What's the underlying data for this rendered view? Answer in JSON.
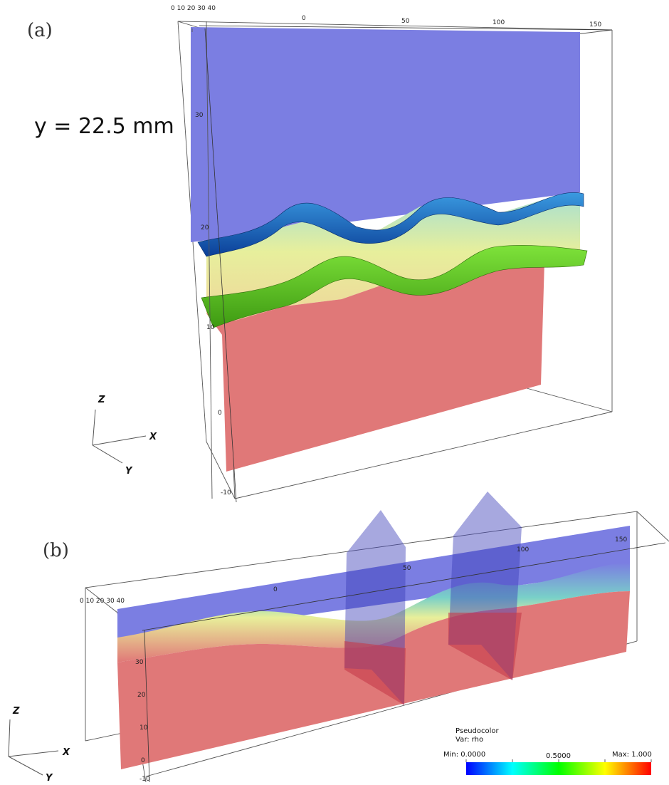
{
  "panels": {
    "a": {
      "label": "(a)",
      "annotation": "y = 22.5 mm",
      "x_ticks": [
        "0",
        "50",
        "100",
        "150"
      ],
      "z_ticks": [
        "30",
        "20",
        "10",
        "0",
        "-10"
      ],
      "corner_ticks": "0 10 20 30 40"
    },
    "b": {
      "label": "(b)",
      "x_ticks": [
        "0",
        "50",
        "100",
        "150"
      ],
      "z_ticks": [
        "30",
        "20",
        "10",
        "0",
        "-10"
      ],
      "corner_ticks": "0 10 20 30 40"
    }
  },
  "axes": {
    "x": "X",
    "y": "Y",
    "z": "Z"
  },
  "legend": {
    "title": "Pseudocolor",
    "var": "Var: rho",
    "min_label": "Min: 0.0000",
    "mid_label": "0.5000",
    "max_label": "Max: 1.000",
    "colors": [
      "#0000ff",
      "#00ffff",
      "#00ff00",
      "#ffff00",
      "#ff0000"
    ]
  },
  "colors": {
    "heavy": "#e07878",
    "light": "#7b7ee2",
    "mix": "#e9ef9e",
    "iso_blue": "#1e6ec8",
    "iso_green": "#5fd21e"
  }
}
